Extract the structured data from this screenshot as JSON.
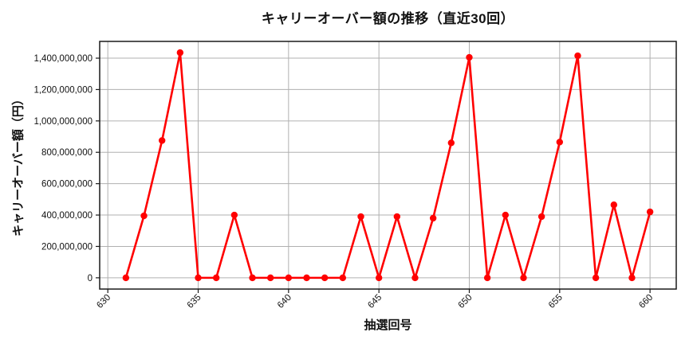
{
  "chart_data": {
    "type": "line",
    "title": "キャリーオーバー額の推移（直近30回）",
    "xlabel": "抽選回号",
    "ylabel": "キャリーオーバー額（円）",
    "series": [
      {
        "name": "キャリーオーバー額",
        "color": "#ff0000",
        "x": [
          631,
          632,
          633,
          634,
          635,
          636,
          637,
          638,
          639,
          640,
          641,
          642,
          643,
          644,
          645,
          646,
          647,
          648,
          649,
          650,
          651,
          652,
          653,
          654,
          655,
          656,
          657,
          658,
          659,
          660
        ],
        "y": [
          0,
          395000000,
          875000000,
          1435000000,
          0,
          0,
          400000000,
          0,
          0,
          0,
          0,
          0,
          0,
          390000000,
          0,
          390000000,
          0,
          380000000,
          860000000,
          1405000000,
          0,
          400000000,
          0,
          390000000,
          865000000,
          1415000000,
          0,
          465000000,
          0,
          420000000
        ]
      }
    ],
    "x_ticks": [
      {
        "value": 630,
        "label": "630"
      },
      {
        "value": 635,
        "label": "635"
      },
      {
        "value": 640,
        "label": "640"
      },
      {
        "value": 645,
        "label": "645"
      },
      {
        "value": 650,
        "label": "650"
      },
      {
        "value": 655,
        "label": "655"
      },
      {
        "value": 660,
        "label": "660"
      }
    ],
    "y_ticks": [
      {
        "value": 0,
        "label": "0"
      },
      {
        "value": 200000000,
        "label": "200,000,000"
      },
      {
        "value": 400000000,
        "label": "400,000,000"
      },
      {
        "value": 600000000,
        "label": "600,000,000"
      },
      {
        "value": 800000000,
        "label": "800,000,000"
      },
      {
        "value": 1000000000,
        "label": "1,000,000,000"
      },
      {
        "value": 1200000000,
        "label": "1,200,000,000"
      },
      {
        "value": 1400000000,
        "label": "1,400,000,000"
      }
    ],
    "xlim": [
      629.55,
      661.45
    ],
    "ylim": [
      -71750000,
      1506750000
    ],
    "grid": true,
    "grid_color": "#b0b0b0",
    "spine_color": "#1a1a1a",
    "background": "#ffffff",
    "marker": "circle",
    "legend": "none"
  }
}
